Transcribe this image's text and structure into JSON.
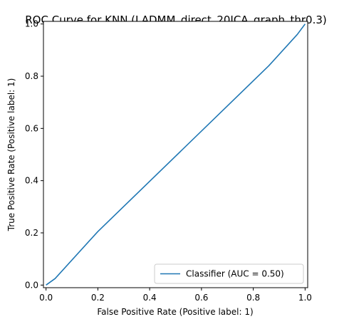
{
  "chart_data": {
    "type": "line",
    "title": "ROC Curve for KNN (LADMM_direct_20ICA_graph_thr0.3)",
    "xlabel": "False Positive Rate (Positive label: 1)",
    "ylabel": "True Positive Rate (Positive label: 1)",
    "xlim": [
      0,
      1
    ],
    "ylim": [
      0,
      1
    ],
    "x_ticks": [
      "0.0",
      "0.2",
      "0.4",
      "0.6",
      "0.8",
      "1.0"
    ],
    "y_ticks": [
      "0.0",
      "0.2",
      "0.4",
      "0.6",
      "0.8",
      "1.0"
    ],
    "grid": false,
    "legend_position": "bottom-right",
    "series": [
      {
        "name": "Classifier (AUC = 0.50)",
        "color": "#1f77b4",
        "x": [
          0.0,
          0.035,
          0.2,
          0.86,
          0.97,
          1.0
        ],
        "y": [
          0.0,
          0.025,
          0.205,
          0.84,
          0.96,
          1.0
        ]
      }
    ]
  }
}
